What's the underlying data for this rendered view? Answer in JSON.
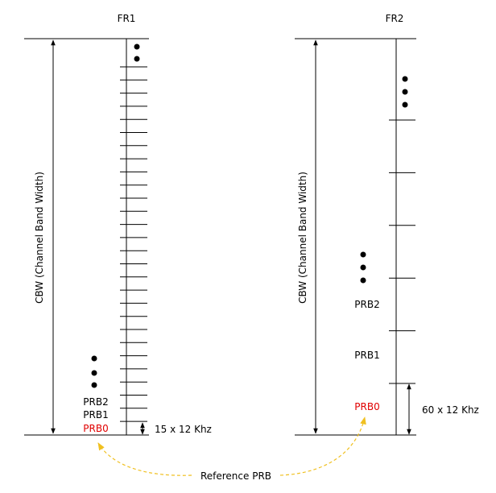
{
  "fr1": {
    "title": "FR1",
    "cbw_label": "CBW (Channel Band Width)",
    "prb_labels": [
      "PRB2",
      "PRB1",
      "PRB0"
    ],
    "spacing_label": "15 x 12 Khz"
  },
  "fr2": {
    "title": "FR2",
    "cbw_label": "CBW (Channel Band Width)",
    "prb_labels": [
      "PRB2",
      "PRB1",
      "PRB0"
    ],
    "spacing_label": "60 x 12 Khz"
  },
  "reference_label": "Reference PRB",
  "colors": {
    "line": "#000000",
    "reference_prb": "#e00000",
    "reference_arrow": "#f0c020"
  }
}
